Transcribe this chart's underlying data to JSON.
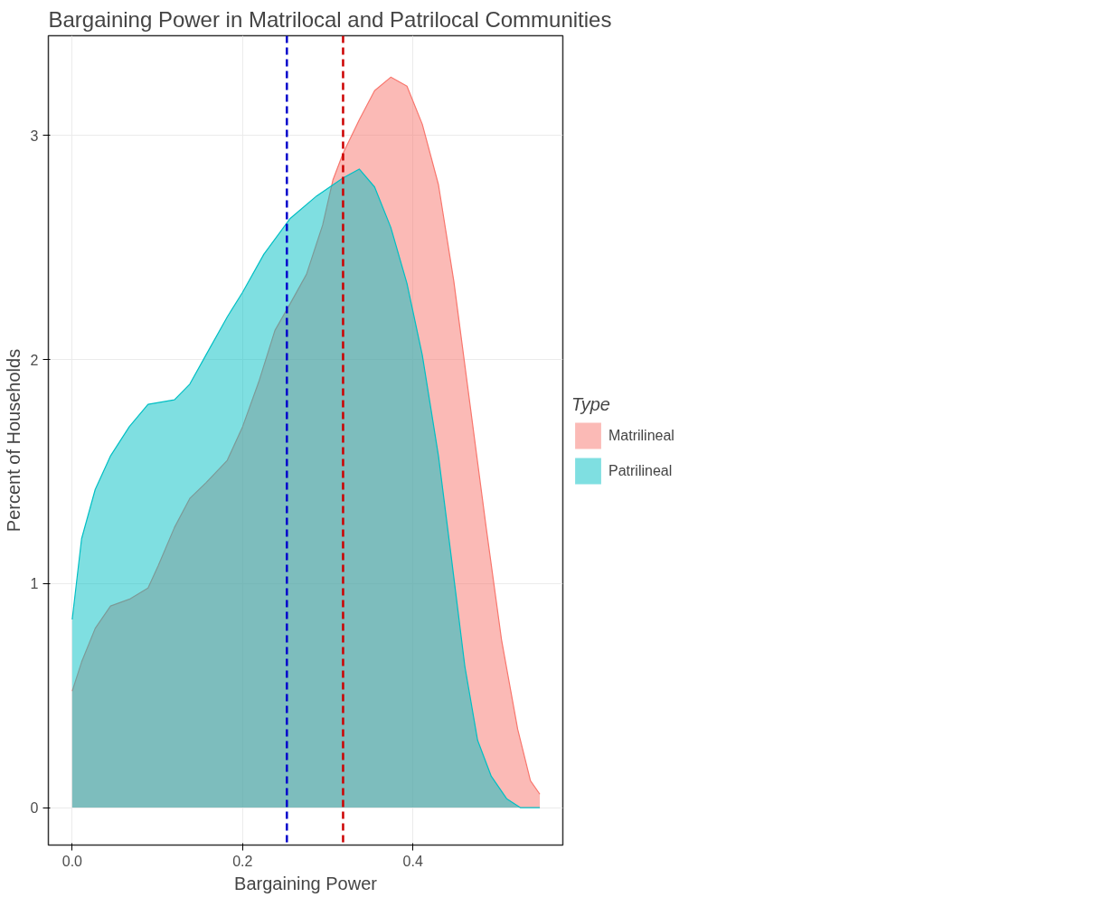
{
  "chart_data": {
    "type": "area",
    "title": "Bargaining Power in Matrilocal and Patrilocal Communities",
    "xlabel": "Bargaining Power",
    "ylabel": "Percent of Households",
    "legend_title": "Type",
    "legend": "right",
    "grid": true,
    "xlim": [
      -0.028,
      0.576
    ],
    "ylim": [
      -0.167,
      3.445
    ],
    "xticks": [
      {
        "value": 0,
        "label": "0.0"
      },
      0.2,
      0.4
    ],
    "yticks": [
      0,
      1,
      2,
      3
    ],
    "series": [
      {
        "name": "Matrilineal",
        "color": "#f8766d",
        "x": [
          0,
          0.011,
          0.027,
          0.045,
          0.067,
          0.089,
          0.101,
          0.12,
          0.138,
          0.157,
          0.182,
          0.2,
          0.219,
          0.238,
          0.256,
          0.275,
          0.294,
          0.306,
          0.318,
          0.337,
          0.355,
          0.374,
          0.393,
          0.411,
          0.43,
          0.448,
          0.467,
          0.486,
          0.504,
          0.523,
          0.538,
          0.549
        ],
        "values": [
          0.52,
          0.65,
          0.8,
          0.9,
          0.93,
          0.98,
          1.08,
          1.25,
          1.38,
          1.45,
          1.55,
          1.7,
          1.9,
          2.13,
          2.25,
          2.38,
          2.6,
          2.8,
          2.92,
          3.07,
          3.2,
          3.26,
          3.22,
          3.05,
          2.78,
          2.35,
          1.8,
          1.25,
          0.75,
          0.35,
          0.12,
          0.06
        ]
      },
      {
        "name": "Patrilineal",
        "color": "#00bfc4",
        "x": [
          0,
          0.011,
          0.027,
          0.045,
          0.067,
          0.089,
          0.12,
          0.138,
          0.157,
          0.182,
          0.2,
          0.225,
          0.256,
          0.287,
          0.318,
          0.337,
          0.355,
          0.374,
          0.393,
          0.411,
          0.43,
          0.445,
          0.461,
          0.476,
          0.492,
          0.51,
          0.526,
          0.549
        ],
        "values": [
          0.84,
          1.2,
          1.42,
          1.57,
          1.7,
          1.8,
          1.82,
          1.89,
          2.02,
          2.19,
          2.3,
          2.47,
          2.63,
          2.73,
          2.81,
          2.85,
          2.77,
          2.59,
          2.34,
          2.02,
          1.57,
          1.12,
          0.63,
          0.3,
          0.14,
          0.04,
          0.0,
          0.0
        ]
      }
    ],
    "ref_lines": [
      {
        "axis": "x",
        "value": 0.252,
        "color": "#0000cc",
        "line_style": "dashed"
      },
      {
        "axis": "x",
        "value": 0.318,
        "color": "#cc0000",
        "line_style": "dashed"
      }
    ]
  }
}
